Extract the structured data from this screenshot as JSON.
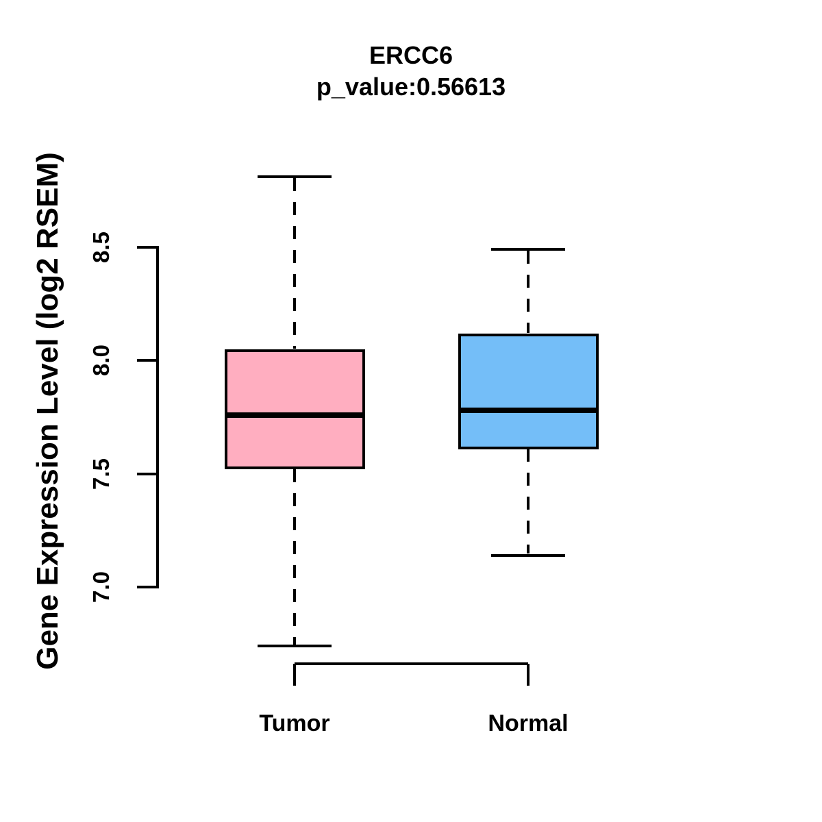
{
  "title": "ERCC6",
  "subtitle": "p_value:0.56613",
  "y_axis": {
    "label": "Gene Expression Level (log2 RSEM)",
    "ticks": [
      {
        "label": "7.0",
        "value": 7.0
      },
      {
        "label": "7.5",
        "value": 7.5
      },
      {
        "label": "8.0",
        "value": 8.0
      },
      {
        "label": "8.5",
        "value": 8.5
      }
    ]
  },
  "chart_data": {
    "type": "boxplot",
    "title": "ERCC6",
    "subtitle": "p_value:0.56613",
    "ylabel": "Gene Expression Level (log2 RSEM)",
    "xlabel": "",
    "categories": [
      "Tumor",
      "Normal"
    ],
    "y_tick_values": [
      7.0,
      7.5,
      8.0,
      8.5
    ],
    "axis_range_shown": [
      7.0,
      8.5
    ],
    "grid": false,
    "legend": "none",
    "series": [
      {
        "name": "Tumor",
        "color": "#FFAEC0",
        "whisker_low": 6.74,
        "q1": 7.52,
        "median": 7.76,
        "q3": 8.05,
        "whisker_high": 8.81
      },
      {
        "name": "Normal",
        "color": "#74BEF8",
        "whisker_low": 7.14,
        "q1": 7.61,
        "median": 7.78,
        "q3": 8.12,
        "whisker_high": 8.49
      }
    ],
    "colors": {
      "tumor_fill": "#FFAEC0",
      "normal_fill": "#74BEF8",
      "line": "#000000",
      "background": "#FFFFFF"
    }
  }
}
